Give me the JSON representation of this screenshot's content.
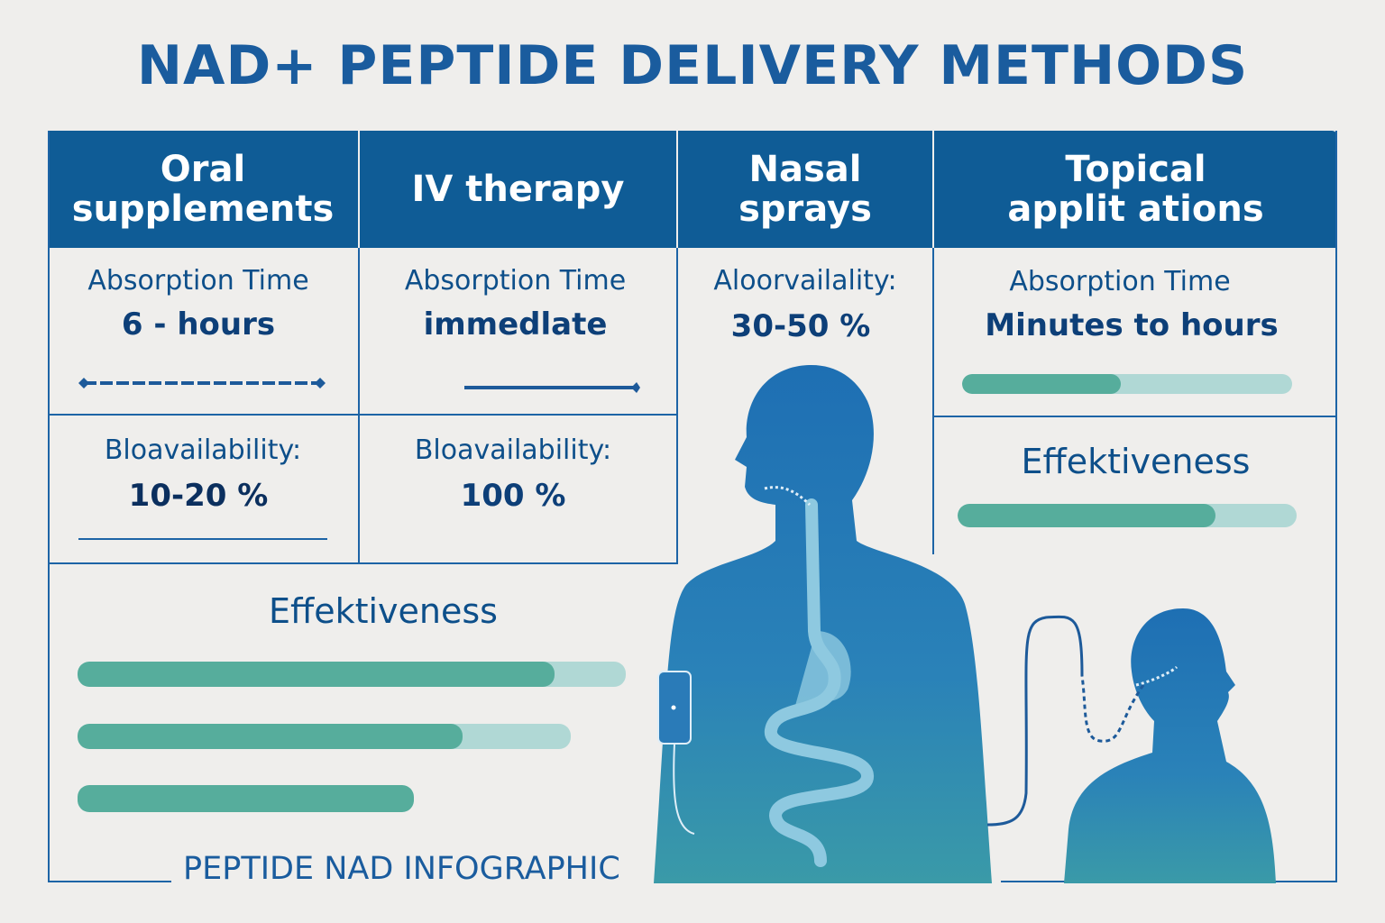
{
  "title": "NAD+ PEPTIDE DELIVERY METHODS",
  "columns": [
    {
      "header": "Oral supplements",
      "absorption_label": "Absorption Time",
      "absorption_value": "6 - hours",
      "bioavailability_label": "Bloavailability:",
      "bioavailability_value": "10-20 %"
    },
    {
      "header": "IV therapy",
      "absorption_label": "Absorption Time",
      "absorption_value": "immedlate",
      "bioavailability_label": "Bloavailability:",
      "bioavailability_value": "100 %"
    },
    {
      "header": "Nasal sprays",
      "bioavailability_label": "Aloorvailality:",
      "bioavailability_value": "30-50 %"
    },
    {
      "header": "Topical applit ations",
      "absorption_label": "Absorption Time",
      "absorption_value": "Minutes to hours",
      "absorption_bar_fill": 0.48,
      "effectiveness_label": "Effektiveness",
      "effectiveness_bar_fill": 0.76
    }
  ],
  "effectiveness": {
    "label": "Effektiveness",
    "bars": [
      {
        "fill": 0.87
      },
      {
        "fill": 0.78
      },
      {
        "fill": 1.0
      }
    ]
  },
  "footer": "PEPTIDE NAD INFOGRAPHIC",
  "colors": {
    "header": "#0f5c96",
    "text": "#0d4f8a",
    "bar_fill": "#56ad9c",
    "bar_track": "#b0d8d5",
    "background": "#efeeec"
  }
}
